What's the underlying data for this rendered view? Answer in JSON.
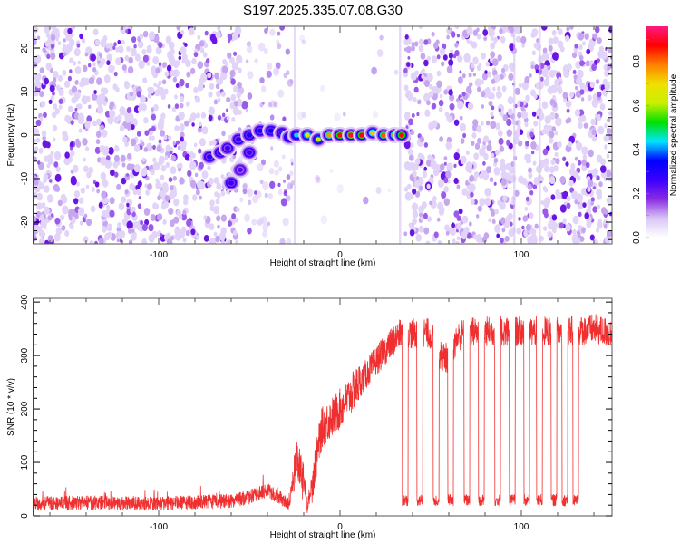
{
  "chart_data": [
    {
      "type": "heatmap",
      "title": "S197.2025.335.07.08.G30",
      "xlabel": "Height of straight line (km)",
      "ylabel": "Frequency (Hz)",
      "xlim": [
        -169,
        150
      ],
      "ylim": [
        -25,
        25
      ],
      "xticks": [
        -100,
        0,
        100
      ],
      "xtick_labels": [
        "-100",
        "0",
        "100"
      ],
      "yticks": [
        -20,
        -10,
        0,
        10,
        20
      ],
      "ytick_labels": [
        "-20",
        "-10",
        "0",
        "10",
        "20"
      ],
      "colorbar": {
        "label": "Normalized spectral amplitude",
        "range": [
          0.0,
          0.96
        ],
        "ticks": [
          0.0,
          0.2,
          0.4,
          0.6,
          0.8
        ],
        "tick_labels": [
          "0.0",
          "0.2",
          "0.4",
          "0.6",
          "0.8"
        ],
        "colormap": [
          "#ffffff",
          "#d9c6f5",
          "#8a2be2",
          "#3a00ff",
          "#0000ff",
          "#00e5ff",
          "#00e000",
          "#c8f000",
          "#f0e000",
          "#ff8000",
          "#ff0000",
          "#ff1a80"
        ]
      },
      "signal_track": [
        {
          "x": -72,
          "y": -5,
          "amp": 0.3
        },
        {
          "x": -66,
          "y": -4,
          "amp": 0.32
        },
        {
          "x": -62,
          "y": -3,
          "amp": 0.28
        },
        {
          "x": -56,
          "y": -1,
          "amp": 0.3
        },
        {
          "x": -50,
          "y": 0,
          "amp": 0.35
        },
        {
          "x": -44,
          "y": 1,
          "amp": 0.33
        },
        {
          "x": -38,
          "y": 1,
          "amp": 0.36
        },
        {
          "x": -32,
          "y": 0.5,
          "amp": 0.38
        },
        {
          "x": -28,
          "y": -0.5,
          "amp": 0.5
        },
        {
          "x": -24,
          "y": 0,
          "amp": 0.45
        },
        {
          "x": -18,
          "y": 0,
          "amp": 0.7
        },
        {
          "x": -12,
          "y": -1,
          "amp": 0.65
        },
        {
          "x": -6,
          "y": 0,
          "amp": 0.8
        },
        {
          "x": 0,
          "y": 0,
          "amp": 0.9
        },
        {
          "x": 6,
          "y": 0,
          "amp": 0.95
        },
        {
          "x": 12,
          "y": 0,
          "amp": 0.92
        },
        {
          "x": 18,
          "y": 0.5,
          "amp": 0.75
        },
        {
          "x": 24,
          "y": 0,
          "amp": 0.85
        },
        {
          "x": 30,
          "y": 0,
          "amp": 0.8
        },
        {
          "x": 34,
          "y": 0,
          "amp": 0.9
        }
      ],
      "signal_branch": [
        {
          "x": -60,
          "y": -11,
          "amp": 0.3
        },
        {
          "x": -55,
          "y": -8,
          "amp": 0.25
        },
        {
          "x": -50,
          "y": -4,
          "amp": 0.3
        }
      ],
      "quiet_zone_x": [
        -25,
        36
      ],
      "noise_level": "low amplitude (0.0-0.2) speckle outside quiet zone"
    },
    {
      "type": "line",
      "xlabel": "Height of straight line (km)",
      "ylabel": "SNR (10 * v/v)",
      "xlim": [
        -169,
        150
      ],
      "ylim": [
        0,
        407
      ],
      "xticks": [
        -100,
        0,
        100
      ],
      "xtick_labels": [
        "-100",
        "0",
        "100"
      ],
      "yticks": [
        0,
        100,
        200,
        300,
        400
      ],
      "ytick_labels": [
        "0",
        "100",
        "200",
        "300",
        "400"
      ],
      "color": "#f03030",
      "series": [
        {
          "name": "SNR",
          "x": [
            -169,
            -140,
            -100,
            -80,
            -60,
            -50,
            -45,
            -40,
            -35,
            -28,
            -24,
            -20,
            -18,
            -10,
            0,
            10,
            20,
            30,
            35,
            40,
            45,
            50,
            55,
            60,
            65,
            70,
            80,
            90,
            100,
            110,
            120,
            130,
            140,
            150
          ],
          "y": [
            20,
            22,
            20,
            22,
            25,
            32,
            40,
            45,
            35,
            20,
            110,
            60,
            12,
            165,
            200,
            245,
            290,
            330,
            345,
            340,
            345,
            340,
            300,
            295,
            335,
            345,
            345,
            345,
            345,
            345,
            345,
            345,
            350,
            340
          ]
        }
      ],
      "dropouts": {
        "low_value": 25,
        "x_centers": [
          36,
          44,
          53,
          61,
          70,
          78,
          87,
          95,
          103,
          110,
          118,
          124,
          130
        ]
      }
    }
  ]
}
